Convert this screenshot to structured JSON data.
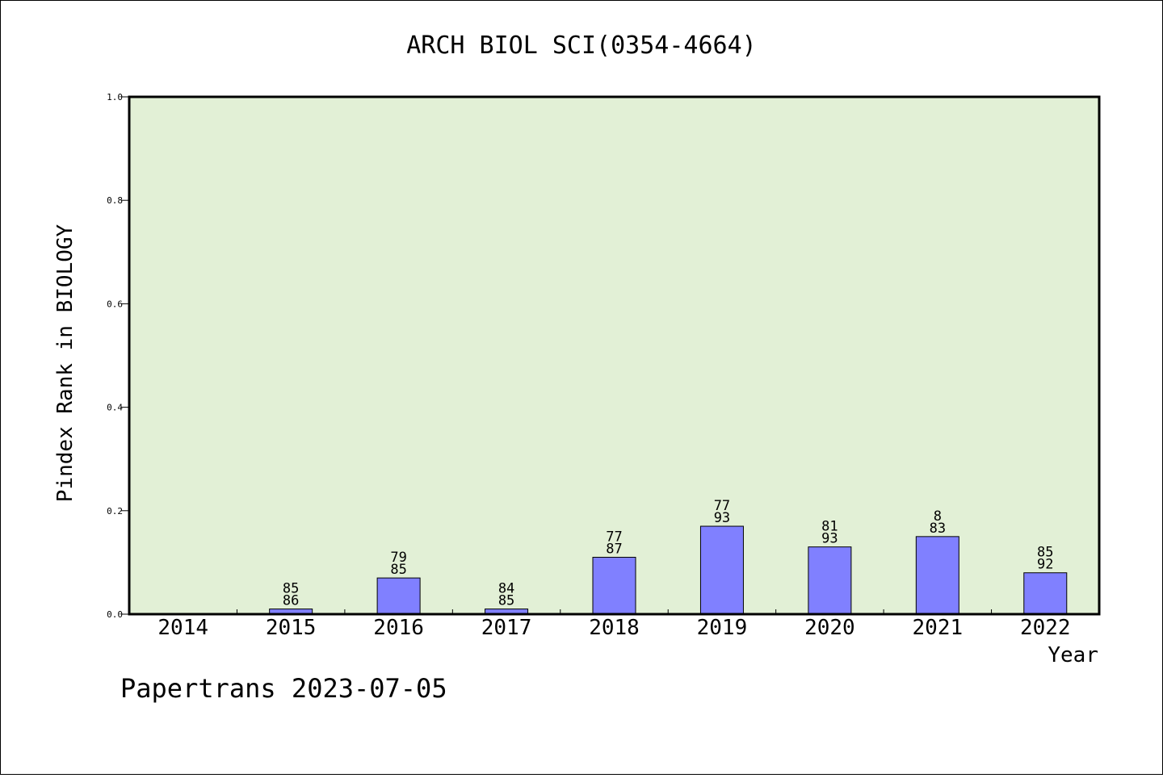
{
  "chart_data": {
    "type": "bar",
    "title": "ARCH BIOL SCI(0354-4664)",
    "xlabel": "Year",
    "ylabel": "Pindex Rank in BIOLOGY",
    "categories": [
      "2014",
      "2015",
      "2016",
      "2017",
      "2018",
      "2019",
      "2020",
      "2021",
      "2022"
    ],
    "values": [
      0.0,
      0.01,
      0.07,
      0.01,
      0.11,
      0.17,
      0.13,
      0.15,
      0.08
    ],
    "bar_labels": [
      [
        "",
        ""
      ],
      [
        "85",
        "86"
      ],
      [
        "79",
        "85"
      ],
      [
        "84",
        "85"
      ],
      [
        "77",
        "87"
      ],
      [
        "77",
        "93"
      ],
      [
        "81",
        "93"
      ],
      [
        "8",
        "83"
      ],
      [
        "85",
        "92"
      ]
    ],
    "ylim": [
      0,
      1.0
    ],
    "yticks": [
      "0.0",
      "0.2",
      "0.4",
      "0.6",
      "0.8",
      "1.0"
    ],
    "grid": false,
    "colors": {
      "plot_background": "#e2f0d6",
      "bar_fill": "#8080ff",
      "bar_stroke": "#000000"
    }
  },
  "footer": {
    "credit": "Papertrans 2023-07-05"
  }
}
